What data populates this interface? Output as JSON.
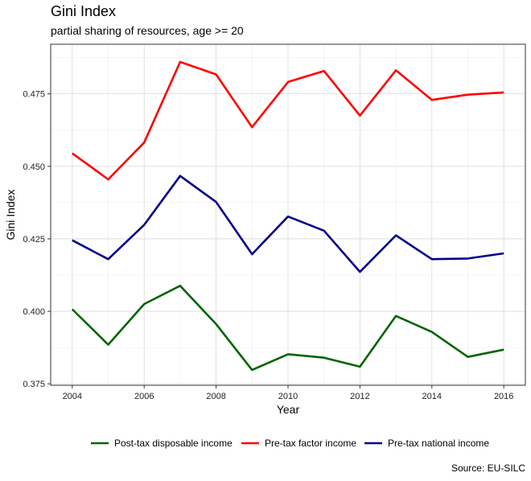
{
  "chart_data": {
    "type": "line",
    "title": "Gini Index",
    "subtitle": "partial sharing of resources, age >= 20",
    "xlabel": "Year",
    "ylabel": "Gini Index",
    "caption": "Source: EU-SILC",
    "xlim": [
      2003.4,
      2016.6
    ],
    "ylim": [
      0.3745,
      0.4921
    ],
    "x_ticks": [
      2004,
      2006,
      2008,
      2010,
      2012,
      2014,
      2016
    ],
    "y_ticks": [
      0.375,
      0.4,
      0.425,
      0.45,
      0.475
    ],
    "y_tick_labels": [
      "0.375",
      "0.400",
      "0.425",
      "0.450",
      "0.475"
    ],
    "x": [
      2004,
      2005,
      2006,
      2007,
      2008,
      2009,
      2010,
      2011,
      2012,
      2013,
      2014,
      2015,
      2016
    ],
    "grid": true,
    "legend_position": "bottom",
    "series": [
      {
        "name": "Post-tax disposable income",
        "color": "#006400",
        "values": [
          0.4007,
          0.3885,
          0.4025,
          0.4088,
          0.3956,
          0.3798,
          0.3852,
          0.384,
          0.3809,
          0.3984,
          0.3929,
          0.3843,
          0.3868
        ]
      },
      {
        "name": "Pre-tax factor income",
        "color": "#ff0000",
        "values": [
          0.4545,
          0.4455,
          0.4582,
          0.486,
          0.4817,
          0.4635,
          0.4791,
          0.4829,
          0.4675,
          0.4831,
          0.4729,
          0.4747,
          0.4755
        ]
      },
      {
        "name": "Pre-tax national income",
        "color": "#00008b",
        "values": [
          0.4245,
          0.418,
          0.4298,
          0.4467,
          0.4377,
          0.4197,
          0.4327,
          0.4278,
          0.4136,
          0.4262,
          0.418,
          0.4182,
          0.42
        ]
      }
    ]
  }
}
